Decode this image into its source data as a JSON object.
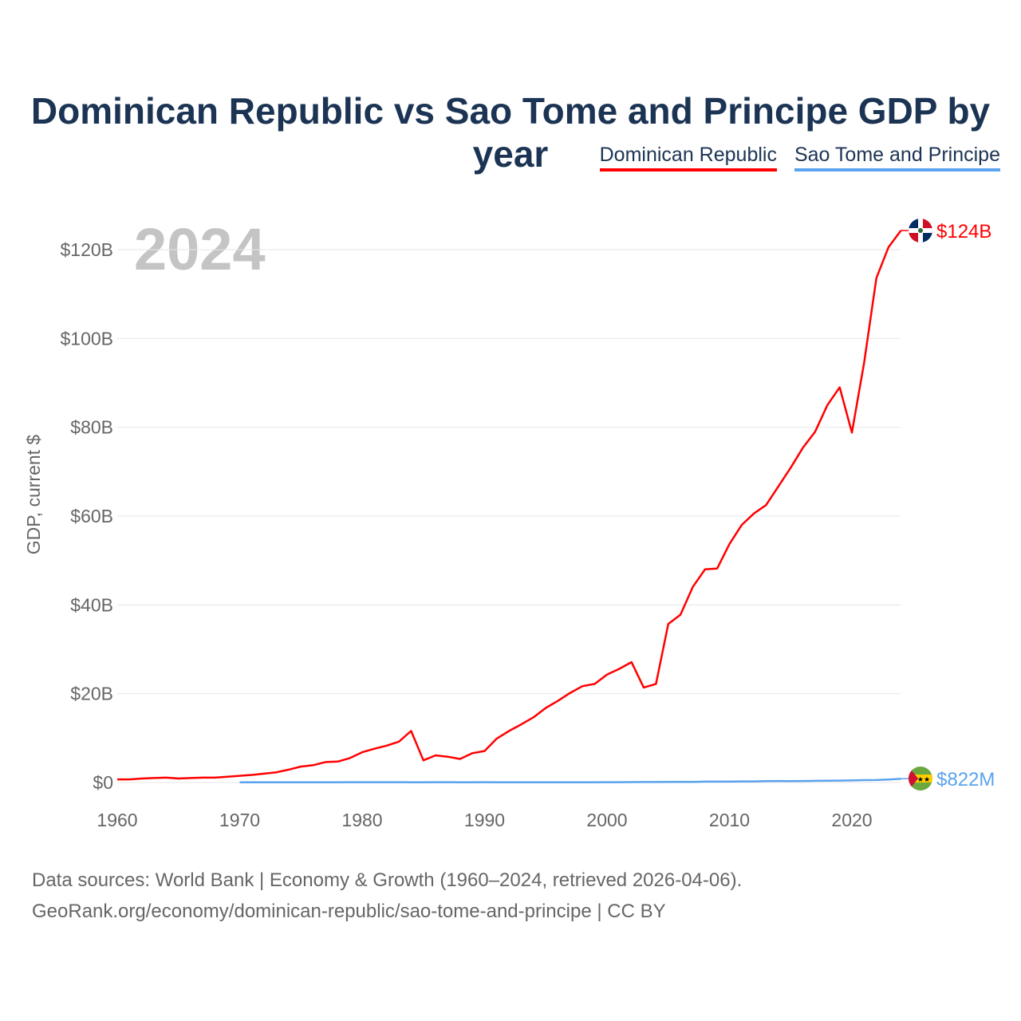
{
  "title": "Dominican Republic vs Sao Tome and Principe GDP by year",
  "legend": [
    {
      "label": "Dominican Republic",
      "color": "#ff0000"
    },
    {
      "label": "Sao Tome and Principe",
      "color": "#5ba3ee"
    }
  ],
  "source_line1": "Data sources: World Bank | Economy & Growth (1960–2024, retrieved 2026-04-06).",
  "source_line2": "GeoRank.org/economy/dominican-republic/sao-tome-and-principe | CC BY",
  "chart_data": {
    "type": "line",
    "title": "Dominican Republic vs Sao Tome and Principe GDP by year",
    "xlabel": "",
    "ylabel": "GDP, current $",
    "year_watermark": "2024",
    "xlim": [
      1960,
      2024
    ],
    "ylim": [
      0,
      130
    ],
    "x_ticks": [
      1960,
      1970,
      1980,
      1990,
      2000,
      2010,
      2020
    ],
    "y_ticks": [
      {
        "v": 0,
        "label": "$0"
      },
      {
        "v": 20,
        "label": "$20B"
      },
      {
        "v": 40,
        "label": "$40B"
      },
      {
        "v": 60,
        "label": "$60B"
      },
      {
        "v": 80,
        "label": "$80B"
      },
      {
        "v": 100,
        "label": "$100B"
      },
      {
        "v": 120,
        "label": "$120B"
      }
    ],
    "grid": true,
    "legend_position": "top-right",
    "units": "billions USD",
    "series": [
      {
        "name": "Dominican Republic",
        "color": "#ff0000",
        "end_label": "$124B",
        "start_year": 1960,
        "values": [
          0.7,
          0.7,
          0.9,
          1.0,
          1.1,
          0.9,
          1.0,
          1.1,
          1.1,
          1.3,
          1.5,
          1.7,
          2.0,
          2.3,
          2.9,
          3.6,
          3.9,
          4.6,
          4.7,
          5.5,
          6.8,
          7.6,
          8.3,
          9.2,
          11.6,
          5.0,
          6.1,
          5.8,
          5.3,
          6.6,
          7.1,
          9.9,
          11.6,
          13.1,
          14.7,
          16.8,
          18.4,
          20.2,
          21.7,
          22.2,
          24.3,
          25.6,
          27.1,
          21.4,
          22.2,
          35.7,
          37.8,
          44.0,
          48.0,
          48.2,
          53.7,
          58.0,
          60.6,
          62.5,
          66.7,
          70.9,
          75.4,
          79.0,
          85.0,
          89.0,
          78.8,
          94.5,
          113.6,
          120.6,
          124.3
        ]
      },
      {
        "name": "Sao Tome and Principe",
        "color": "#5ba3ee",
        "end_label": "$822M",
        "start_year": 1970,
        "values": [
          0.03,
          0.03,
          0.03,
          0.04,
          0.05,
          0.05,
          0.05,
          0.05,
          0.06,
          0.07,
          0.08,
          0.08,
          0.07,
          0.07,
          0.06,
          0.06,
          0.07,
          0.07,
          0.06,
          0.06,
          0.07,
          0.06,
          0.05,
          0.06,
          0.06,
          0.05,
          0.05,
          0.05,
          0.05,
          0.05,
          0.08,
          0.08,
          0.09,
          0.1,
          0.11,
          0.12,
          0.14,
          0.15,
          0.19,
          0.2,
          0.2,
          0.25,
          0.26,
          0.3,
          0.35,
          0.32,
          0.35,
          0.38,
          0.42,
          0.43,
          0.47,
          0.53,
          0.55,
          0.68,
          0.82
        ]
      }
    ]
  }
}
